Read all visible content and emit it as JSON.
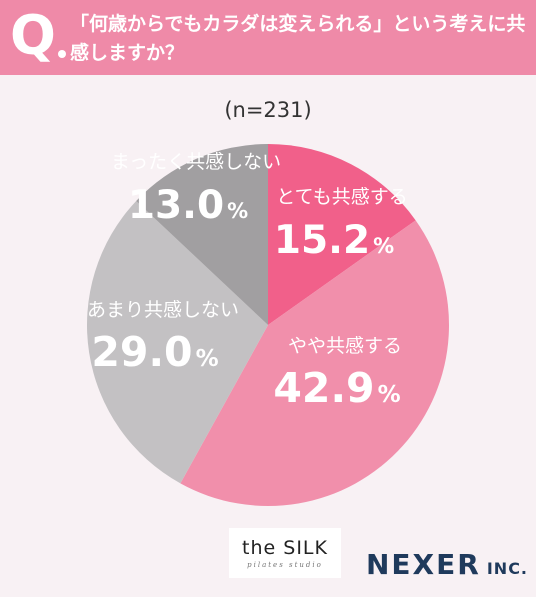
{
  "header": {
    "q_mark": "Q",
    "question": "「何歳からでもカラダは変えられる」という考えに共感しますか？"
  },
  "chart_data": {
    "type": "pie",
    "sample_size": "(n=231)",
    "unit": "%",
    "slices": [
      {
        "label": "とても共感する",
        "value": 15.2,
        "value_text": "15.2",
        "color": "#f1608a",
        "label_color": "#ffffff"
      },
      {
        "label": "やや共感する",
        "value": 42.9,
        "value_text": "42.9",
        "color": "#f18fab",
        "label_color": "#ffffff"
      },
      {
        "label": "あまり共感しない",
        "value": 29.0,
        "value_text": "29.0",
        "color": "#c3c1c3",
        "label_color": "#ffffff"
      },
      {
        "label": "まったく共感しない",
        "value": 13.0,
        "value_text": "13.0",
        "color": "#a19fa1",
        "label_color": "#ffffff"
      }
    ]
  },
  "logos": {
    "silk_main": "the SILK",
    "silk_sub": "pilates studio",
    "nexer_main": "NEXER",
    "nexer_suffix": "INC."
  }
}
